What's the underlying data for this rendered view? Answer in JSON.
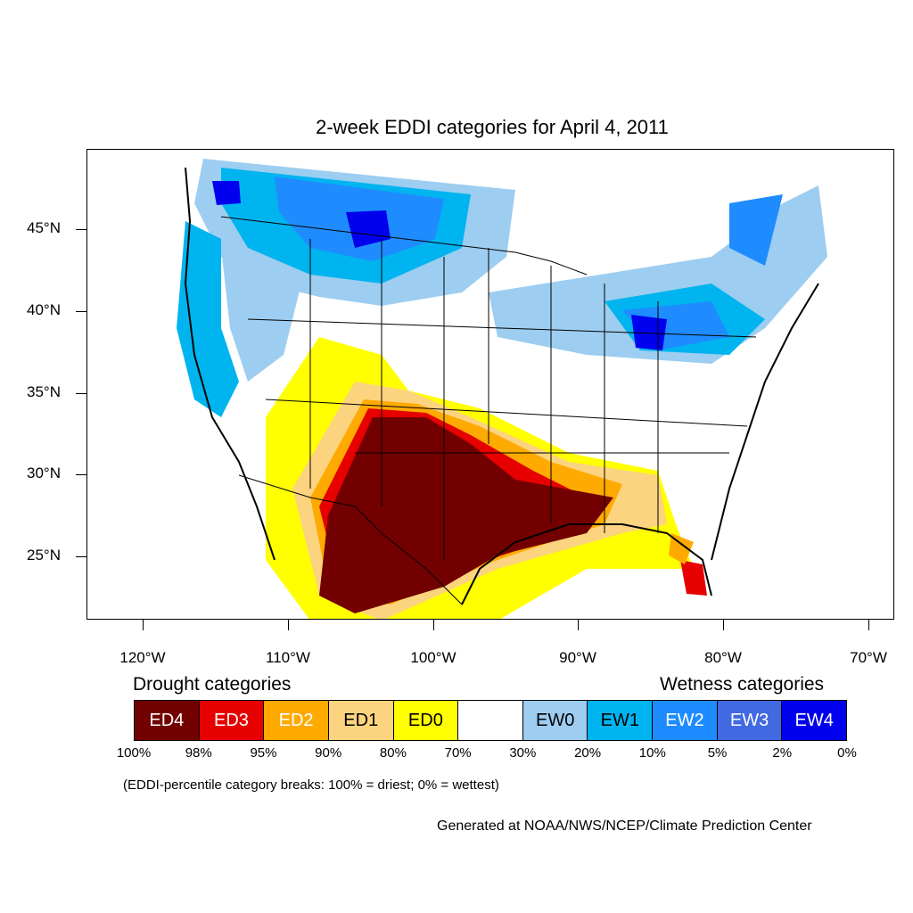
{
  "title": "2-week EDDI categories for April 4, 2011",
  "latitude_labels": [
    "45°N",
    "40°N",
    "35°N",
    "30°N",
    "25°N"
  ],
  "longitude_labels": [
    "120°W",
    "110°W",
    "100°W",
    "90°W",
    "80°W",
    "70°W"
  ],
  "legend": {
    "drought_heading": "Drought categories",
    "wetness_heading": "Wetness categories",
    "categories": [
      {
        "label": "ED4",
        "color": "#730000",
        "text_color": "#ffffff"
      },
      {
        "label": "ED3",
        "color": "#e60000",
        "text_color": "#ffffff"
      },
      {
        "label": "ED2",
        "color": "#ffaa00",
        "text_color": "#ffffff"
      },
      {
        "label": "ED1",
        "color": "#fcd37f",
        "text_color": "#000000"
      },
      {
        "label": "ED0",
        "color": "#ffff00",
        "text_color": "#000000"
      },
      {
        "label": "",
        "color": "#ffffff",
        "text_color": "#000000"
      },
      {
        "label": "EW0",
        "color": "#9dcdf0",
        "text_color": "#000000"
      },
      {
        "label": "EW1",
        "color": "#00b4f0",
        "text_color": "#000000"
      },
      {
        "label": "EW2",
        "color": "#1e8cff",
        "text_color": "#ffffff"
      },
      {
        "label": "EW3",
        "color": "#4169e1",
        "text_color": "#ffffff"
      },
      {
        "label": "EW4",
        "color": "#0000ee",
        "text_color": "#ffffff"
      }
    ],
    "percent_breaks": [
      "100%",
      "98%",
      "95%",
      "90%",
      "80%",
      "70%",
      "30%",
      "20%",
      "10%",
      "5%",
      "2%",
      "0%"
    ]
  },
  "note": "(EDDI-percentile category breaks: 100% = driest; 0% = wettest)",
  "credit": "Generated at NOAA/NWS/NCEP/Climate Prediction Center"
}
